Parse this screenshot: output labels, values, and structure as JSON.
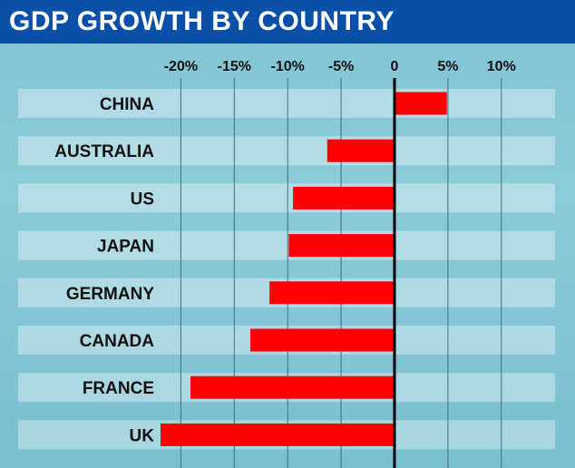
{
  "chart_data": {
    "type": "bar",
    "orientation": "horizontal",
    "title": "GDP GROWTH BY COUNTRY",
    "categories": [
      "CHINA",
      "AUSTRALIA",
      "US",
      "JAPAN",
      "GERMANY",
      "CANADA",
      "FRANCE",
      "UK"
    ],
    "values": [
      4.9,
      -6.3,
      -9.5,
      -9.9,
      -11.7,
      -13.5,
      -19.1,
      -21.9
    ],
    "xlim": [
      -22.5,
      15
    ],
    "ticks": [
      -20,
      -15,
      -10,
      -5,
      0,
      5,
      10
    ],
    "tick_labels": [
      "-20%",
      "-15%",
      "-10%",
      "-5%",
      "0",
      "5%",
      "10%"
    ],
    "xlabel": "",
    "ylabel": "",
    "grid": true,
    "bar_color": "#ff0000"
  }
}
